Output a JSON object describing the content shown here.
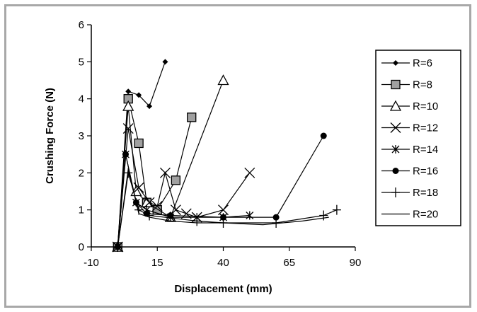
{
  "chart_data": {
    "type": "line",
    "title": "",
    "xlabel": "Displacement (mm)",
    "ylabel": "Crushing Force (N)",
    "xlim": [
      -10,
      90
    ],
    "ylim": [
      0,
      6
    ],
    "xticks": [
      "-10",
      "15",
      "40",
      "65",
      "90"
    ],
    "yticks": [
      "0",
      "1",
      "2",
      "3",
      "4",
      "5",
      "6"
    ],
    "grid": false,
    "legend_position": "right",
    "colors": {
      "line": "#000000",
      "square_fill": "#a0a0a0"
    },
    "series": [
      {
        "name": "R=6",
        "marker": "diamond",
        "x": [
          0,
          4,
          8,
          12,
          18
        ],
        "y": [
          0,
          4.2,
          4.1,
          3.8,
          5.0
        ]
      },
      {
        "name": "R=8",
        "marker": "square",
        "x": [
          0,
          4,
          8,
          11,
          15,
          22,
          28
        ],
        "y": [
          0,
          4.0,
          2.8,
          1.2,
          1.0,
          1.8,
          3.5
        ]
      },
      {
        "name": "R=10",
        "marker": "triangle",
        "x": [
          0,
          4,
          7,
          11,
          20,
          40
        ],
        "y": [
          0,
          3.8,
          1.5,
          1.2,
          0.8,
          4.5
        ]
      },
      {
        "name": "R=12",
        "marker": "x",
        "x": [
          0,
          4,
          8,
          12,
          15,
          18,
          22,
          26,
          30,
          40,
          50
        ],
        "y": [
          0,
          3.2,
          1.6,
          1.2,
          1.1,
          2.0,
          1.0,
          0.9,
          0.8,
          1.0,
          2.0
        ]
      },
      {
        "name": "R=14",
        "marker": "asterisk",
        "x": [
          0,
          3,
          7,
          11,
          20,
          30,
          40,
          50
        ],
        "y": [
          0,
          2.5,
          1.2,
          1.0,
          0.8,
          0.8,
          0.8,
          0.85
        ]
      },
      {
        "name": "R=16",
        "marker": "circle",
        "x": [
          0,
          3,
          7,
          11,
          20,
          40,
          60,
          78
        ],
        "y": [
          0,
          2.5,
          1.2,
          0.9,
          0.85,
          0.8,
          0.8,
          3.0
        ]
      },
      {
        "name": "R=18",
        "marker": "plus",
        "x": [
          0,
          4,
          8,
          12,
          30,
          40,
          60,
          78,
          83
        ],
        "y": [
          0,
          2.0,
          1.0,
          0.85,
          0.7,
          0.65,
          0.65,
          0.85,
          1.0
        ]
      },
      {
        "name": "R=20",
        "marker": "none",
        "x": [
          0,
          4,
          8,
          12,
          20,
          30,
          40,
          55,
          70,
          80
        ],
        "y": [
          0,
          2.1,
          0.9,
          0.8,
          0.7,
          0.65,
          0.65,
          0.6,
          0.7,
          0.8
        ]
      }
    ]
  }
}
